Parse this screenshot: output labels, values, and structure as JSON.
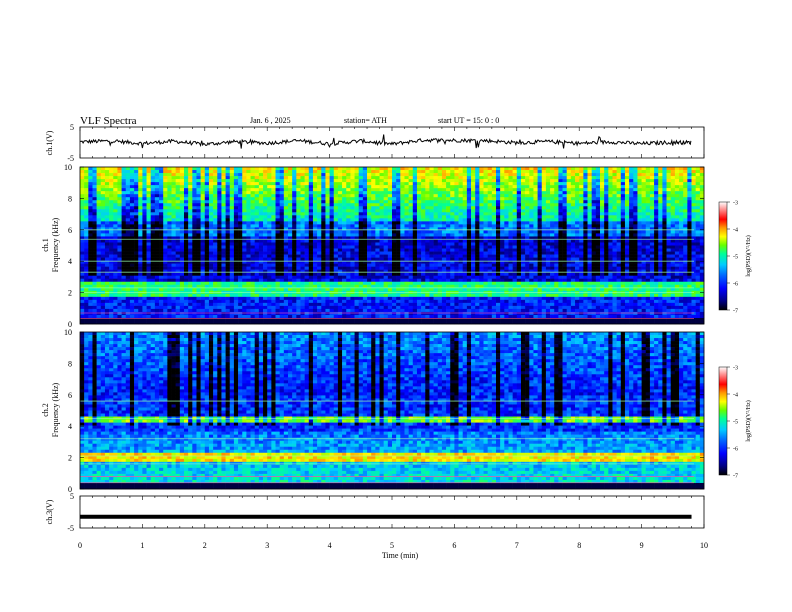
{
  "header": {
    "title": "VLF  Spectra",
    "date": "Jan.  6   , 2025",
    "station": "station= ATH",
    "start_ut": "start  UT  =    15: 0   : 0"
  },
  "colorbar": {
    "label": "log(PSD)(V²/Hz)",
    "ticks": [
      "-3",
      "-4",
      "-5",
      "-6",
      "-7"
    ],
    "colormap": [
      "#000000",
      "#00007f",
      "#0000ff",
      "#0066ff",
      "#00ccff",
      "#00ff99",
      "#66ff00",
      "#ffff00",
      "#ff9900",
      "#ff0000",
      "#ffffff"
    ]
  },
  "chart_data": [
    {
      "type": "line",
      "name": "ch1-waveform",
      "ylabel": "ch.1(V)",
      "ylim": [
        -5,
        5
      ],
      "ytick_labels": [
        "5",
        "-5"
      ],
      "xlim": [
        0,
        9.8
      ],
      "x": [
        0,
        0.5,
        1.0,
        1.5,
        2.0,
        2.5,
        3.0,
        3.5,
        4.0,
        4.5,
        5.0,
        5.5,
        6.0,
        6.5,
        7.0,
        7.5,
        8.0,
        8.5,
        9.0,
        9.5,
        9.8
      ],
      "values": [
        0.2,
        0.5,
        -0.3,
        0.4,
        -0.6,
        0.3,
        -0.2,
        0.6,
        -0.4,
        0.5,
        -0.5,
        0.8,
        0.7,
        0.6,
        -0.1,
        0.3,
        -0.3,
        0.2,
        -0.4,
        0.1,
        0.0
      ],
      "color": "#000000"
    },
    {
      "type": "heatmap",
      "name": "ch1-spectrogram",
      "ylabel": "ch.1\nFrequency  (kHz)",
      "ylim": [
        0,
        10
      ],
      "ytick_labels": [
        "0",
        "2",
        "4",
        "6",
        "8",
        "10"
      ],
      "xlim": [
        0,
        9.8
      ],
      "z_range": [
        -7,
        -3
      ]
    },
    {
      "type": "heatmap",
      "name": "ch2-spectrogram",
      "ylabel": "ch.2\nFrequency  (kHz)",
      "ylim": [
        0,
        10
      ],
      "ytick_labels": [
        "0",
        "2",
        "4",
        "6",
        "8",
        "10"
      ],
      "xlim": [
        0,
        9.8
      ],
      "z_range": [
        -7,
        -3
      ]
    },
    {
      "type": "line",
      "name": "ch3-waveform",
      "ylabel": "ch.3(V)",
      "ylim": [
        -5,
        5
      ],
      "ytick_labels": [
        "5",
        "-5"
      ],
      "xlim": [
        0,
        9.8
      ],
      "x": [
        0,
        9.8
      ],
      "values": [
        -1.5,
        -1.5
      ],
      "color": "#000000"
    }
  ],
  "x_axis": {
    "label": "Time  (min)",
    "range": [
      0,
      10
    ],
    "tick_labels": [
      "0",
      "1",
      "2",
      "3",
      "4",
      "5",
      "6",
      "7",
      "8",
      "9",
      "10"
    ]
  }
}
